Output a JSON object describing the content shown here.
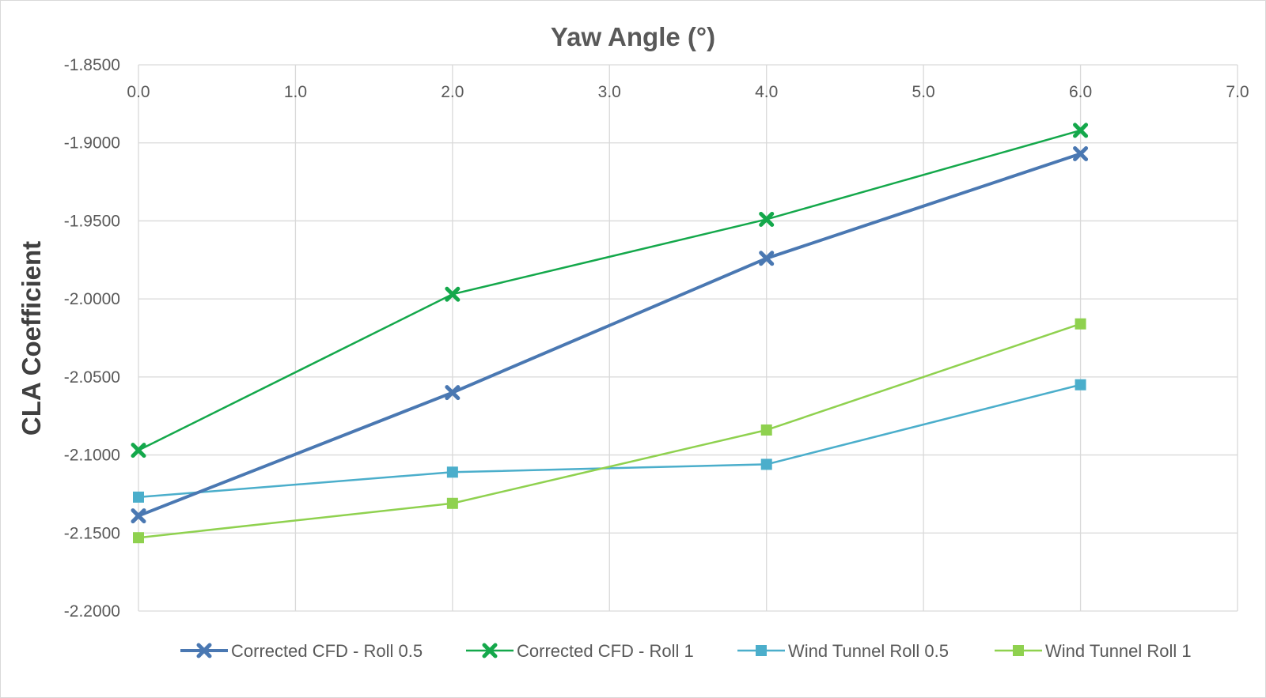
{
  "chart_data": {
    "type": "line",
    "title": "Yaw Angle (°)",
    "xlabel": "",
    "ylabel": "CLA Coefficient",
    "xlim": [
      0,
      7
    ],
    "ylim": [
      -2.2,
      -1.85
    ],
    "x_ticks": [
      "0.0",
      "1.0",
      "2.0",
      "3.0",
      "4.0",
      "5.0",
      "6.0",
      "7.0"
    ],
    "y_ticks": [
      "-1.8500",
      "-1.9000",
      "-1.9500",
      "-2.0000",
      "-2.0500",
      "-2.1000",
      "-2.1500",
      "-2.2000"
    ],
    "x_axis_position": "top",
    "grid": true,
    "legend_position": "bottom",
    "x": [
      0,
      2,
      4,
      6
    ],
    "series": [
      {
        "name": "Corrected CFD - Roll 0.5",
        "values": [
          -2.139,
          -2.06,
          -1.974,
          -1.907
        ],
        "color": "#4a78b2",
        "marker": "x",
        "line_width": 4
      },
      {
        "name": "Corrected CFD - Roll 1",
        "values": [
          -2.097,
          -1.997,
          -1.949,
          -1.892
        ],
        "color": "#14a84b",
        "marker": "x",
        "line_width": 2.5
      },
      {
        "name": "Wind Tunnel Roll 0.5",
        "values": [
          -2.127,
          -2.111,
          -2.106,
          -2.055
        ],
        "color": "#4baecb",
        "marker": "square",
        "line_width": 2.5
      },
      {
        "name": "Wind Tunnel Roll 1",
        "values": [
          -2.153,
          -2.131,
          -2.084,
          -2.016
        ],
        "color": "#8fd14f",
        "marker": "square",
        "line_width": 2.5
      }
    ]
  }
}
